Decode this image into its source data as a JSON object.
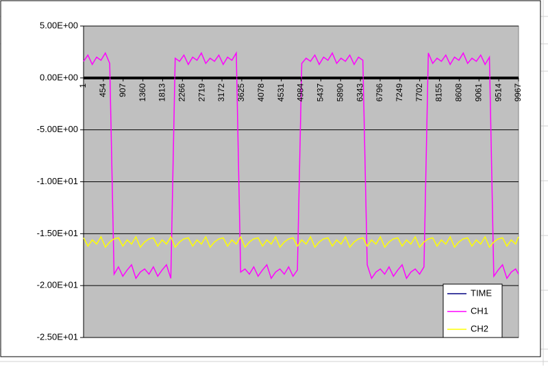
{
  "chart_data": {
    "type": "line",
    "x": [
      1,
      100,
      200,
      300,
      400,
      500,
      600,
      700,
      800,
      900,
      1000,
      1100,
      1200,
      1300,
      1400,
      1500,
      1600,
      1700,
      1800,
      1900,
      2000,
      2100,
      2200,
      2300,
      2400,
      2500,
      2600,
      2700,
      2800,
      2900,
      3000,
      3100,
      3200,
      3300,
      3400,
      3500,
      3600,
      3700,
      3800,
      3900,
      4000,
      4100,
      4200,
      4300,
      4400,
      4500,
      4600,
      4700,
      4800,
      4900,
      5000,
      5100,
      5200,
      5300,
      5400,
      5500,
      5600,
      5700,
      5800,
      5900,
      6000,
      6100,
      6200,
      6300,
      6400,
      6500,
      6600,
      6700,
      6800,
      6900,
      7000,
      7100,
      7200,
      7300,
      7400,
      7500,
      7600,
      7700,
      7800,
      7900,
      8000,
      8100,
      8200,
      8300,
      8400,
      8500,
      8600,
      8700,
      8800,
      8900,
      9000,
      9100,
      9200,
      9300,
      9400,
      9500,
      9600,
      9700,
      9800,
      9900,
      9967
    ],
    "series": [
      {
        "name": "TIME",
        "color": "#000080",
        "values": [
          0,
          0,
          0,
          0,
          0,
          0,
          0,
          0,
          0,
          0,
          0,
          0,
          0,
          0,
          0,
          0,
          0,
          0,
          0,
          0,
          0,
          0,
          0,
          0,
          0,
          0,
          0,
          0,
          0,
          0,
          0,
          0,
          0,
          0,
          0,
          0,
          0,
          0,
          0,
          0,
          0,
          0,
          0,
          0,
          0,
          0,
          0,
          0,
          0,
          0,
          0,
          0,
          0,
          0,
          0,
          0,
          0,
          0,
          0,
          0,
          0,
          0,
          0,
          0,
          0,
          0,
          0,
          0,
          0,
          0,
          0,
          0,
          0,
          0,
          0,
          0,
          0,
          0,
          0,
          0,
          0,
          0,
          0,
          0,
          0,
          0,
          0,
          0,
          0,
          0,
          0,
          0,
          0,
          0,
          0,
          0,
          0,
          0,
          0,
          0,
          0
        ]
      },
      {
        "name": "CH1",
        "color": "#ff00ff",
        "values": [
          1.6,
          2.2,
          1.3,
          2.0,
          1.7,
          2.4,
          1.4,
          -18.9,
          -18.2,
          -19.1,
          -18.5,
          -18.0,
          -19.3,
          -18.7,
          -18.4,
          -18.9,
          -18.2,
          -19.1,
          -18.5,
          -18.0,
          -19.3,
          1.9,
          1.6,
          2.2,
          1.3,
          2.0,
          1.7,
          2.4,
          1.4,
          1.9,
          1.6,
          2.2,
          1.3,
          2.0,
          1.7,
          2.4,
          -18.7,
          -18.4,
          -18.9,
          -18.2,
          -19.1,
          -18.5,
          -18.0,
          -19.3,
          -18.7,
          -18.4,
          -18.9,
          -18.2,
          -19.1,
          -18.5,
          1.4,
          1.9,
          1.6,
          2.2,
          1.3,
          2.0,
          1.7,
          2.4,
          1.4,
          1.9,
          1.6,
          2.2,
          1.3,
          2.0,
          1.7,
          -18.0,
          -19.3,
          -18.7,
          -18.4,
          -18.9,
          -18.2,
          -19.1,
          -18.5,
          -18.0,
          -19.3,
          -18.7,
          -18.4,
          -18.9,
          -18.2,
          2.4,
          1.4,
          1.9,
          1.6,
          2.2,
          1.3,
          2.0,
          1.7,
          2.4,
          1.4,
          1.9,
          1.6,
          2.2,
          1.3,
          2.0,
          -19.1,
          -18.5,
          -18.0,
          -19.3,
          -18.7,
          -18.4,
          -18.9
        ]
      },
      {
        "name": "CH2",
        "color": "#ffff00",
        "values": [
          -15.4,
          -16.2,
          -15.6,
          -16.0,
          -15.3,
          -16.3,
          -15.8,
          -15.5,
          -15.4,
          -16.2,
          -15.6,
          -16.0,
          -15.3,
          -16.3,
          -15.8,
          -15.5,
          -15.4,
          -16.2,
          -15.6,
          -16.0,
          -15.3,
          -16.3,
          -15.8,
          -15.5,
          -15.4,
          -16.2,
          -15.6,
          -16.0,
          -15.3,
          -16.3,
          -15.8,
          -15.5,
          -15.4,
          -16.2,
          -15.6,
          -16.0,
          -15.3,
          -16.3,
          -15.8,
          -15.5,
          -15.4,
          -16.2,
          -15.6,
          -16.0,
          -15.3,
          -16.3,
          -15.8,
          -15.5,
          -15.4,
          -16.2,
          -15.6,
          -16.0,
          -15.3,
          -16.3,
          -15.8,
          -15.5,
          -15.4,
          -16.2,
          -15.6,
          -16.0,
          -15.3,
          -16.3,
          -15.8,
          -15.5,
          -15.4,
          -16.2,
          -15.6,
          -16.0,
          -15.3,
          -16.3,
          -15.8,
          -15.5,
          -15.4,
          -16.2,
          -15.6,
          -16.0,
          -15.3,
          -16.3,
          -15.8,
          -15.5,
          -15.4,
          -16.2,
          -15.6,
          -16.0,
          -15.3,
          -16.3,
          -15.8,
          -15.5,
          -15.4,
          -16.2,
          -15.6,
          -16.0,
          -15.3,
          -16.3,
          -15.8,
          -15.5,
          -15.4,
          -16.2,
          -15.6,
          -16.0,
          -15.3
        ]
      }
    ],
    "xlim": [
      1,
      9967
    ],
    "xticks": [
      1,
      454,
      907,
      1360,
      1813,
      2266,
      2719,
      3172,
      3625,
      4078,
      4531,
      4984,
      5437,
      5890,
      6343,
      6796,
      7249,
      7702,
      8155,
      8608,
      9061,
      9514,
      9967
    ],
    "ylim": [
      -25,
      5
    ],
    "yticks": [
      {
        "value": 5,
        "label": "5.00E+00"
      },
      {
        "value": 0,
        "label": "0.00E+00"
      },
      {
        "value": -5,
        "label": "-5.00E+00"
      },
      {
        "value": -10,
        "label": "-1.00E+01"
      },
      {
        "value": -15,
        "label": "-1.50E+01"
      },
      {
        "value": -20,
        "label": "-2.00E+01"
      },
      {
        "value": -25,
        "label": "-2.50E+01"
      }
    ],
    "grid": true,
    "legend": "lower-right"
  }
}
